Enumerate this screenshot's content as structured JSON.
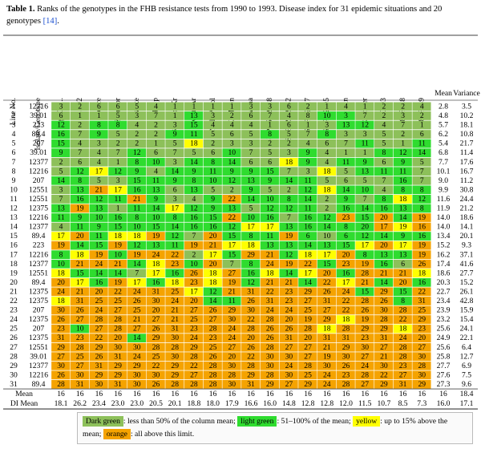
{
  "caption": {
    "label": "Table 1.",
    "text": " Ranks of the genotypes in the FHB resistance tests from 1990 to 1993. Disease index for 31 epidemic situations and 20 genotypes ",
    "ref": "[14]",
    "end": "."
  },
  "table": {
    "header": [
      "Line No.",
      "Isolate/Genotype",
      "Sgv/GT...",
      "85.92",
      "Bence",
      "Zombor",
      "Szőke",
      "Ok-Sp",
      "Bty-Mo*Kr",
      "Mon-Ar",
      "Ni-Kr*Dol",
      "Kri-Mon",
      "Arina",
      "SVP 75059-28",
      "SVP72059-32",
      "SVP 72017",
      "SVP 72005",
      "Copain",
      "Rechsler",
      "RC103",
      "82F328",
      "82F349",
      "Mean",
      "Variance"
    ],
    "rows": [
      [
        1,
        "12216",
        3,
        2,
        6,
        6,
        5,
        4,
        1,
        1,
        1,
        1,
        3,
        3,
        6,
        2,
        1,
        4,
        1,
        2,
        2,
        4,
        2.8,
        3.5
      ],
      [
        2,
        "39.01",
        6,
        1,
        1,
        5,
        3,
        7,
        1,
        13,
        3,
        2,
        6,
        7,
        4,
        8,
        10,
        3,
        7,
        2,
        3,
        2,
        4.8,
        10.2
      ],
      [
        3,
        "223",
        12,
        2,
        8,
        8,
        4,
        2,
        3,
        15,
        4,
        4,
        4,
        1,
        6,
        1,
        3,
        13,
        12,
        4,
        7,
        1,
        5.7,
        18.1
      ],
      [
        4,
        "89.4",
        16,
        7,
        9,
        5,
        2,
        2,
        9,
        11,
        5,
        6,
        5,
        8,
        5,
        7,
        8,
        3,
        3,
        5,
        2,
        6,
        6.2,
        10.8
      ],
      [
        5,
        "207",
        15,
        4,
        3,
        2,
        2,
        1,
        5,
        18,
        2,
        3,
        3,
        2,
        2,
        4,
        6,
        7,
        11,
        5,
        1,
        11,
        5.4,
        21.7
      ],
      [
        6,
        "39.01",
        9,
        7,
        4,
        7,
        12,
        6,
        7,
        5,
        6,
        10,
        7,
        5,
        3,
        9,
        4,
        1,
        1,
        8,
        12,
        14,
        6.8,
        11.4
      ],
      [
        7,
        "12377",
        2,
        6,
        4,
        1,
        8,
        10,
        3,
        14,
        8,
        14,
        6,
        6,
        18,
        9,
        4,
        11,
        9,
        6,
        9,
        5,
        7.7,
        17.6
      ],
      [
        8,
        "12216",
        5,
        12,
        17,
        12,
        9,
        4,
        14,
        9,
        11,
        9,
        9,
        15,
        7,
        3,
        18,
        5,
        13,
        11,
        11,
        7,
        10.1,
        16.7
      ],
      [
        9,
        "207",
        14,
        8,
        5,
        3,
        15,
        11,
        9,
        8,
        10,
        12,
        13,
        9,
        14,
        11,
        5,
        6,
        5,
        7,
        16,
        7,
        "9.0",
        11.2
      ],
      [
        10,
        "12551",
        3,
        13,
        21,
        17,
        16,
        13,
        6,
        13,
        5,
        2,
        9,
        5,
        2,
        12,
        18,
        14,
        10,
        4,
        8,
        8,
        9.9,
        30.8
      ],
      [
        11,
        "12551",
        7,
        16,
        12,
        11,
        21,
        9,
        3,
        4,
        9,
        22,
        14,
        10,
        8,
        14,
        2,
        9,
        7,
        8,
        18,
        12,
        11.6,
        24.4
      ],
      [
        12,
        "12375",
        13,
        19,
        13,
        1,
        11,
        14,
        17,
        12,
        9,
        13,
        5,
        12,
        12,
        11,
        2,
        16,
        14,
        16,
        13,
        8,
        11.9,
        21.2
      ],
      [
        13,
        "12216",
        11,
        9,
        10,
        16,
        8,
        10,
        8,
        16,
        15,
        22,
        10,
        16,
        7,
        16,
        12,
        23,
        15,
        20,
        14,
        19,
        "14.0",
        18.6
      ],
      [
        14,
        "12377",
        4,
        11,
        9,
        15,
        10,
        15,
        14,
        16,
        16,
        12,
        17,
        17,
        13,
        16,
        14,
        8,
        20,
        17,
        19,
        16,
        "14.0",
        14.1
      ],
      [
        15,
        "89.4",
        17,
        20,
        11,
        18,
        18,
        19,
        12,
        7,
        20,
        15,
        8,
        11,
        19,
        6,
        10,
        6,
        12,
        14,
        9,
        16,
        13.4,
        20.1
      ],
      [
        16,
        "223",
        19,
        14,
        15,
        19,
        12,
        13,
        11,
        19,
        21,
        17,
        18,
        13,
        13,
        14,
        13,
        15,
        17,
        20,
        17,
        19,
        15.2,
        9.3
      ],
      [
        17,
        "12216",
        8,
        18,
        19,
        10,
        19,
        24,
        22,
        2,
        17,
        15,
        29,
        21,
        12,
        18,
        17,
        20,
        8,
        13,
        13,
        19,
        16.2,
        37.1
      ],
      [
        18,
        "12377",
        10,
        21,
        24,
        21,
        14,
        18,
        23,
        10,
        20,
        7,
        8,
        24,
        19,
        22,
        15,
        23,
        19,
        16,
        6,
        26,
        17.4,
        41.6
      ],
      [
        19,
        "12551",
        18,
        15,
        14,
        14,
        7,
        17,
        16,
        26,
        18,
        27,
        16,
        18,
        14,
        17,
        20,
        16,
        28,
        21,
        21,
        18,
        18.6,
        27.7
      ],
      [
        20,
        "89.4",
        20,
        17,
        16,
        19,
        17,
        16,
        18,
        23,
        18,
        19,
        12,
        21,
        21,
        14,
        22,
        17,
        21,
        14,
        20,
        16,
        20.3,
        15.2
      ],
      [
        21,
        "12375",
        24,
        21,
        20,
        22,
        24,
        31,
        25,
        17,
        12,
        21,
        31,
        22,
        23,
        29,
        26,
        24,
        15,
        29,
        15,
        22,
        22.7,
        26.1
      ],
      [
        22,
        "12375",
        18,
        31,
        25,
        25,
        26,
        30,
        24,
        20,
        14,
        11,
        26,
        31,
        23,
        27,
        31,
        22,
        28,
        26,
        8,
        31,
        23.4,
        42.8
      ],
      [
        23,
        "207",
        30,
        26,
        24,
        27,
        25,
        20,
        21,
        27,
        26,
        29,
        30,
        24,
        24,
        25,
        27,
        22,
        26,
        30,
        28,
        25,
        23.9,
        15.9
      ],
      [
        24,
        "12375",
        26,
        27,
        28,
        28,
        21,
        27,
        21,
        25,
        27,
        30,
        22,
        28,
        20,
        19,
        29,
        18,
        19,
        28,
        22,
        29,
        23.2,
        15.4
      ],
      [
        25,
        "207",
        23,
        10,
        27,
        28,
        27,
        26,
        31,
        23,
        28,
        24,
        28,
        26,
        26,
        28,
        18,
        28,
        29,
        29,
        18,
        23,
        25.6,
        24.1
      ],
      [
        26,
        "12375",
        31,
        23,
        22,
        20,
        14,
        29,
        30,
        24,
        23,
        24,
        20,
        26,
        31,
        20,
        31,
        31,
        23,
        31,
        24,
        20,
        24.9,
        22.1
      ],
      [
        27,
        "12551",
        29,
        28,
        29,
        30,
        30,
        28,
        28,
        29,
        25,
        27,
        26,
        28,
        27,
        27,
        21,
        29,
        30,
        27,
        28,
        27,
        25.6,
        6.4
      ],
      [
        28,
        "39.01",
        27,
        25,
        26,
        31,
        24,
        25,
        30,
        28,
        26,
        20,
        22,
        30,
        30,
        27,
        19,
        30,
        27,
        21,
        28,
        30,
        25.8,
        12.7
      ],
      [
        29,
        "12377",
        30,
        27,
        31,
        29,
        29,
        22,
        29,
        22,
        28,
        30,
        28,
        30,
        24,
        28,
        30,
        26,
        24,
        30,
        23,
        28,
        27.7,
        6.9
      ],
      [
        30,
        "12216",
        26,
        30,
        29,
        29,
        30,
        30,
        29,
        27,
        28,
        28,
        29,
        28,
        30,
        25,
        24,
        23,
        28,
        22,
        27,
        30,
        27.6,
        7.5
      ],
      [
        31,
        "89.4",
        28,
        31,
        30,
        31,
        30,
        26,
        28,
        28,
        28,
        30,
        31,
        29,
        27,
        29,
        24,
        28,
        27,
        29,
        31,
        29,
        27.3,
        9.6
      ]
    ],
    "mean_row": [
      "Mean",
      16,
      16,
      16,
      16,
      16,
      16,
      16,
      16,
      16,
      16,
      16,
      16,
      16,
      16,
      16,
      16,
      16,
      16,
      16,
      16,
      16,
      18.4
    ],
    "di_mean_row": [
      "DI Mean",
      "18.1",
      "26.2",
      "23.4",
      "23.0",
      "23.0",
      "20.5",
      "20.1",
      "18.8",
      "18.0",
      "17.9",
      "16.6",
      "16.0",
      "14.8",
      "12.8",
      "12.8",
      "12.0",
      "11.5",
      "10.7",
      "8.5",
      "7.3",
      "16.0",
      "17.1"
    ]
  },
  "palette": {
    "d": "#8dc05a",
    "l": "#2fdc2f",
    "y": "#ffff00",
    "o": "#f5a300"
  },
  "cell_colors": [
    "dddddddddddddddddddd",
    "dddddddlddddddlldddd",
    "ldlldddldddddddllddd",
    "ldldddlldddlddlddddd",
    "lddddddyddddddddlddl",
    "ldddlddddldddldddlll",
    "ddddlldlllddyldlldld",
    "dlylldllllllddydllld",
    "llddllllllllllddddld",
    "dloylldlddlddlylldll",
    "dlllolddlolllldldlyl",
    "loldllyllldllldlllll",
    "lllllllllolldllololo",
    "dlllllllllyyllllloyol",
    "yolyyoldollloldlllll",
    "ollolllooyylllllyoyo",
    "lyolooodyloolyyolllo",
    "looolyolodlooolooldo",
    "yllldyloyolylyolooo y",
    "oyloylyoyolooloyolol",
    "oooooooylooooooololo",
    "yoooooooll oooooooolo",
    "oooooooooooooooooooo",
    "oooooooooooooooyoooo",
    "olooooooooooooyoooyo",
    "oooolooooooooooooooo",
    "oooooooooooooooooooo",
    "oooooooooooooooooooo",
    "oooooooooooooooooooo",
    "oooooooooooooooooooo",
    "oooooooooooooooooooo"
  ],
  "legend": [
    {
      "label": "Dark green",
      "text": ": less than 50% of the column mean; ",
      "color": "#8dc05a"
    },
    {
      "label": "light green",
      "text": ": 51–100% of the mean; ",
      "color": "#2fdc2f"
    },
    {
      "label": "yellow",
      "text": ": up to 15% above the mean; ",
      "color": "#ffff00"
    },
    {
      "label": "orange",
      "text": ": all above this limit.",
      "color": "#f5a300"
    }
  ]
}
